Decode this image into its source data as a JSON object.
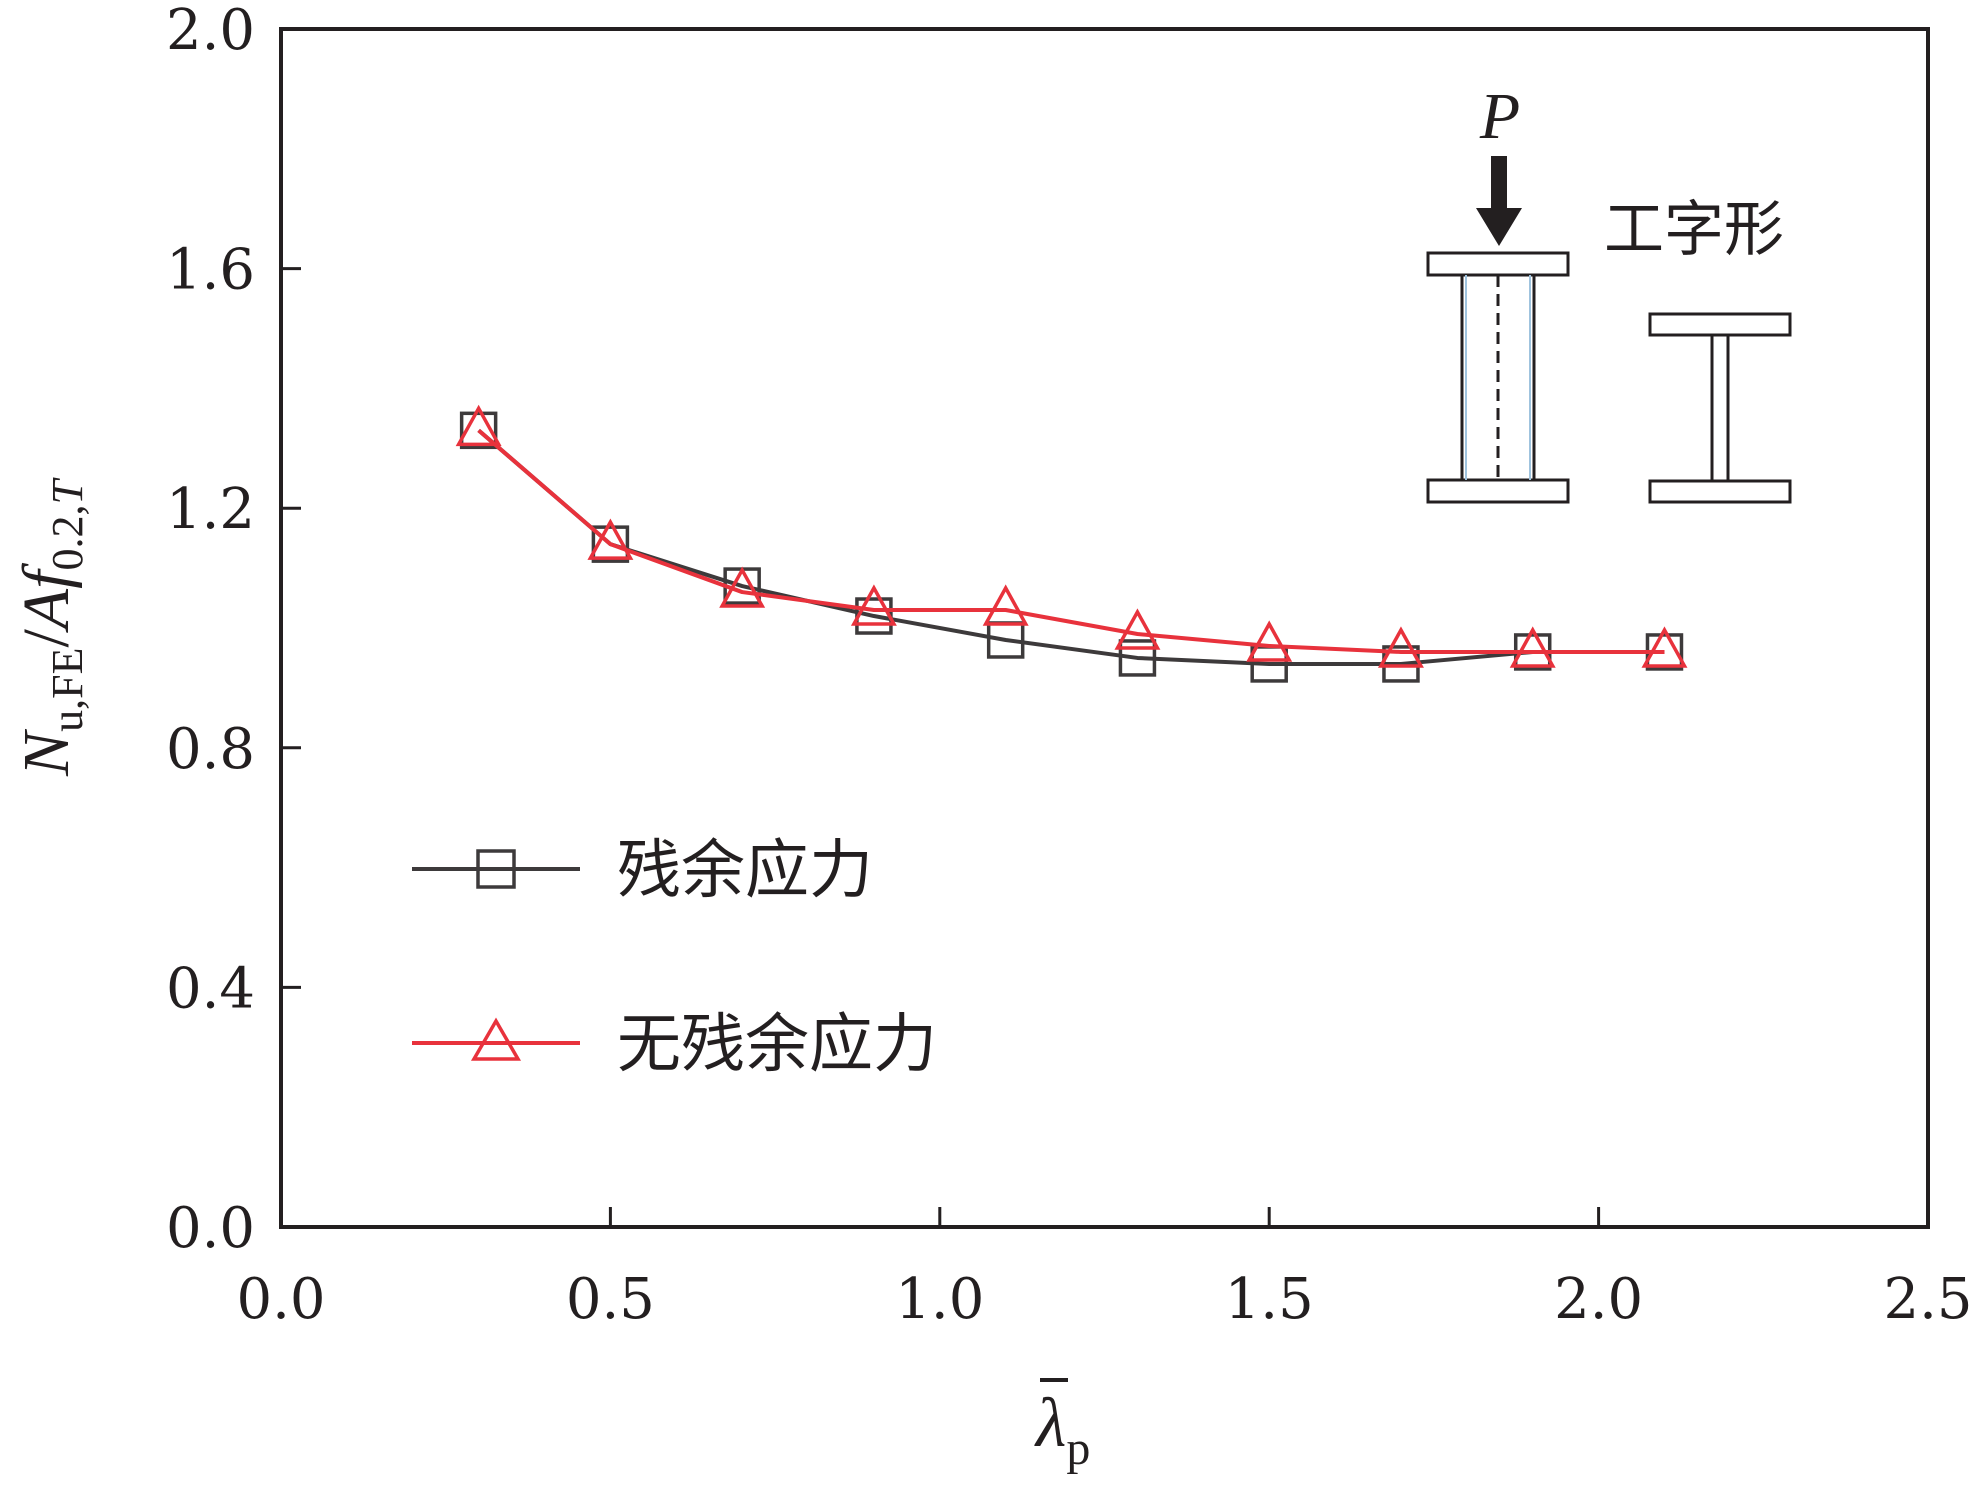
{
  "chart_data": {
    "type": "line",
    "x_tick_labels": [
      "0.0",
      "0.5",
      "1.0",
      "1.5",
      "2.0",
      "2.5"
    ],
    "y_tick_labels": [
      "0.0",
      "0.4",
      "0.8",
      "1.2",
      "1.6",
      "2.0"
    ],
    "xlim": [
      0,
      2.5
    ],
    "ylim": [
      0,
      2.0
    ],
    "xlabel": {
      "base": "λ",
      "sub": "p",
      "overbar": true
    },
    "ylabel": {
      "n": "N",
      "n_sub": "u,FE",
      "slash": "/",
      "af": "Af",
      "af_sub": "0.2,",
      "t": "T"
    },
    "x": [
      0.3,
      0.5,
      0.7,
      0.9,
      1.1,
      1.3,
      1.5,
      1.7,
      1.9,
      2.1
    ],
    "series": [
      {
        "name": "残余应力",
        "color": "#3d3a3b",
        "marker": "square",
        "values": [
          1.33,
          1.14,
          1.07,
          1.02,
          0.98,
          0.95,
          0.94,
          0.94,
          0.96,
          0.96
        ]
      },
      {
        "name": "无残余应力",
        "color": "#e8323c",
        "marker": "triangle",
        "values": [
          1.33,
          1.14,
          1.06,
          1.03,
          1.03,
          0.99,
          0.97,
          0.96,
          0.96,
          0.96
        ]
      }
    ],
    "grid": false,
    "legend_position": "bottom-left",
    "inset": {
      "load_label": "P",
      "section_label": "工字形"
    }
  }
}
